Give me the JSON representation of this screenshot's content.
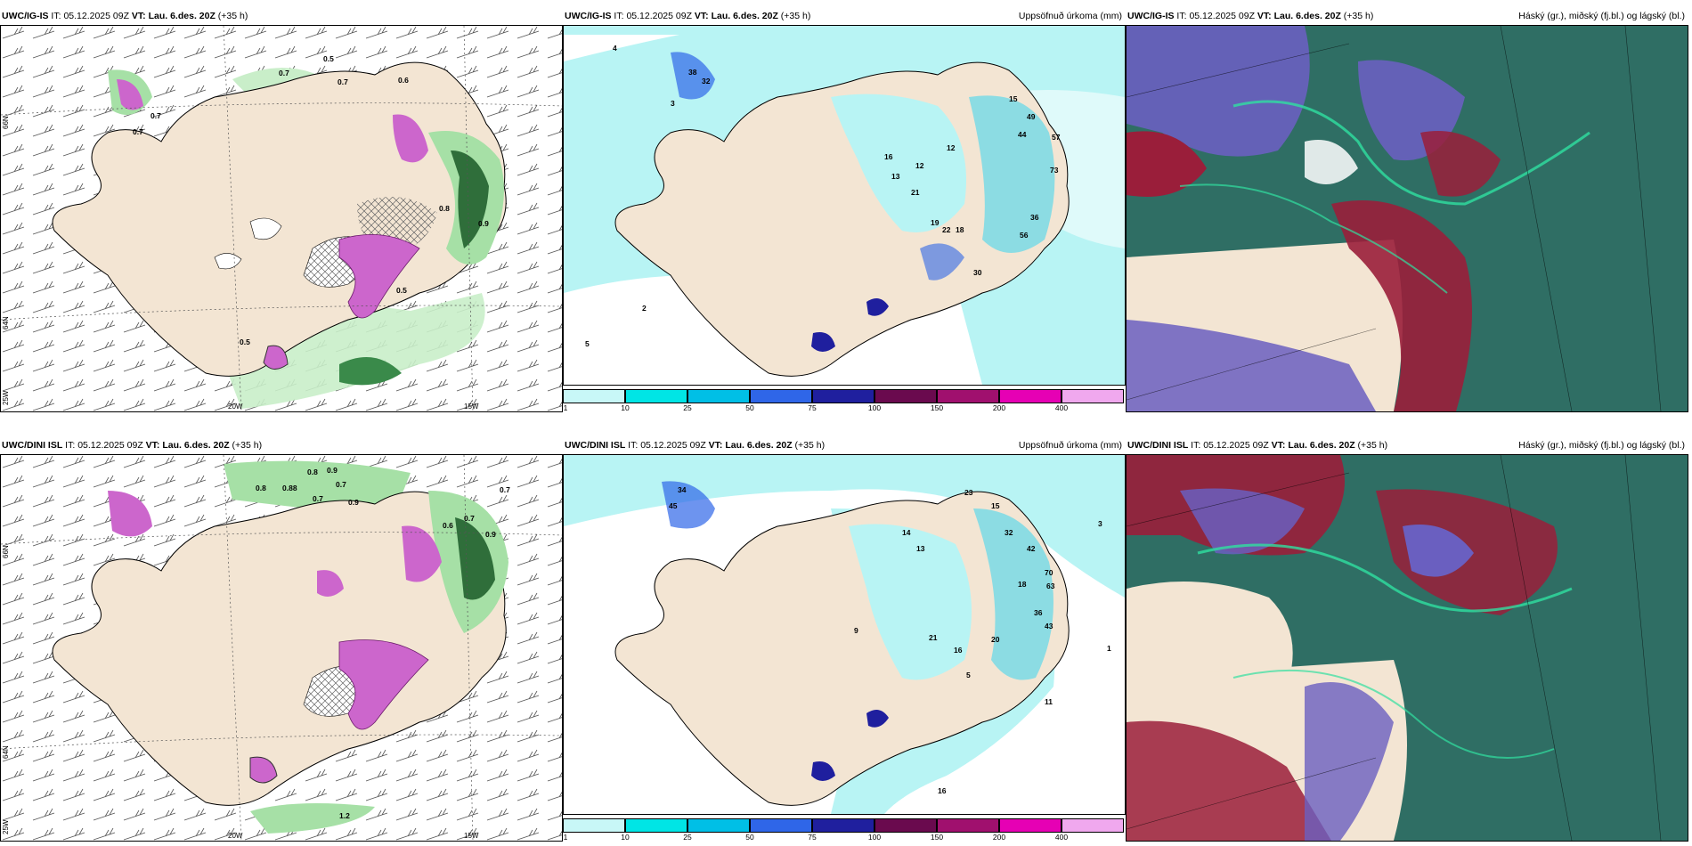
{
  "rows": [
    {
      "model": "UWC/IG-IS",
      "it_label": "IT:",
      "it_value": "05.12.2025 09Z",
      "vt_label": "VT:",
      "vt_value": "Lau. 6.des. 20Z",
      "lead": "(+35 h)"
    },
    {
      "model": "UWC/DINI ISL",
      "it_label": "IT:",
      "it_value": "05.12.2025 09Z",
      "vt_label": "VT:",
      "vt_value": "Lau. 6.des. 20Z",
      "lead": "(+35 h)"
    }
  ],
  "panel_titles": {
    "precip": "Uppsöfnuð úrkoma (mm)",
    "clouds": "Háský (gr.), miðský (fj.bl.) og lágský (bl.)"
  },
  "axis_labels": {
    "lat_66": "66N",
    "lat_64": "64N",
    "lon_25": "25W",
    "lon_20": "20W",
    "lon_15": "15W"
  },
  "legend": {
    "ticks": [
      "1",
      "10",
      "25",
      "50",
      "75",
      "100",
      "150",
      "200",
      "400"
    ],
    "colors": [
      "#c8f7f7",
      "#00e5e5",
      "#00bfe6",
      "#2f66e8",
      "#1f1f9e",
      "#6a0a4e",
      "#a0106e",
      "#e600b4",
      "#f0a8ee"
    ]
  },
  "ig_snow_values": [
    "0.5",
    "0.7",
    "0.7",
    "0.7",
    "0.6",
    "0.7",
    "0.8",
    "0.9",
    "0.5",
    "0.5"
  ],
  "ig_precip_values": [
    "38",
    "32",
    "49",
    "44",
    "57",
    "73",
    "36",
    "56",
    "21",
    "19",
    "22",
    "18",
    "12",
    "16",
    "15",
    "13",
    "30",
    "12",
    "3",
    "4",
    "2",
    "5"
  ],
  "dini_snow_values": [
    "0.8",
    "0.9",
    "0.7",
    "0.8",
    "0.88",
    "0.7",
    "0.9",
    "0.6",
    "0.7",
    "0.7",
    "0.9",
    "1.2"
  ],
  "dini_precip_values": [
    "45",
    "34",
    "23",
    "15",
    "32",
    "42",
    "70",
    "63",
    "36",
    "43",
    "21",
    "20",
    "16",
    "13",
    "18",
    "14",
    "16",
    "9",
    "5",
    "11",
    "3",
    "1"
  ],
  "colors": {
    "land": "#f3e5d3",
    "sea": "#ffffff",
    "precip_light": "#b8f4f4",
    "precip_mid": "#5fd8ea",
    "snow_green": "#a6e0a6",
    "snow_dark": "#3a8a4a",
    "snow_magenta": "#cc66cc",
    "cloud_high": "#2f6e64",
    "cloud_mid": "#6a5fc0",
    "cloud_low": "#9a1e3a"
  }
}
